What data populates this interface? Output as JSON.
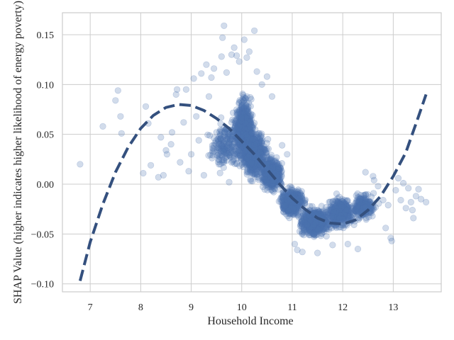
{
  "chart_data": {
    "type": "scatter",
    "xlabel": "Household Income",
    "ylabel": "SHAP Value (higher indicates higher likelihood of energy poverty)",
    "xlim": [
      6.45,
      13.95
    ],
    "ylim": [
      -0.108,
      0.172
    ],
    "x_ticks": [
      7,
      8,
      9,
      10,
      11,
      12,
      13
    ],
    "x_tick_labels": [
      "7",
      "8",
      "9",
      "10",
      "11",
      "12",
      "13"
    ],
    "y_ticks": [
      -0.1,
      -0.05,
      0.0,
      0.05,
      0.1,
      0.15
    ],
    "y_tick_labels": [
      "−0.10",
      "−0.05",
      "0.00",
      "0.05",
      "0.10",
      "0.15"
    ],
    "grid": true,
    "point_color": "#4c72b0",
    "point_alpha": 0.25,
    "trend_color": "#34507e",
    "trend_style": "dashed",
    "series": [
      {
        "kind": "scatter",
        "sparse_points": [
          [
            6.8,
            0.02
          ],
          [
            7.25,
            0.058
          ],
          [
            7.5,
            0.084
          ],
          [
            7.55,
            0.094
          ],
          [
            7.6,
            0.068
          ],
          [
            7.62,
            0.051
          ],
          [
            8.05,
            0.011
          ],
          [
            8.1,
            0.078
          ],
          [
            8.15,
            0.061
          ],
          [
            8.2,
            0.019
          ],
          [
            8.35,
            0.007
          ],
          [
            8.4,
            0.047
          ],
          [
            8.45,
            0.009
          ],
          [
            8.5,
            0.034
          ],
          [
            8.52,
            0.03
          ],
          [
            8.6,
            0.04
          ],
          [
            8.62,
            0.052
          ],
          [
            8.7,
            0.09
          ],
          [
            8.72,
            0.095
          ],
          [
            8.78,
            0.022
          ],
          [
            8.85,
            0.062
          ],
          [
            8.9,
            0.095
          ],
          [
            8.95,
            0.013
          ],
          [
            9.0,
            0.03
          ],
          [
            9.05,
            0.106
          ],
          [
            9.1,
            0.068
          ],
          [
            9.15,
            0.044
          ],
          [
            9.2,
            0.111
          ],
          [
            9.25,
            0.009
          ],
          [
            9.3,
            0.12
          ],
          [
            9.35,
            0.088
          ],
          [
            9.4,
            0.107
          ],
          [
            9.45,
            0.116
          ],
          [
            9.5,
            0.052
          ],
          [
            9.55,
            0.02
          ],
          [
            9.6,
            0.128
          ],
          [
            9.62,
            0.147
          ],
          [
            9.65,
            0.159
          ],
          [
            9.7,
            0.112
          ],
          [
            9.75,
            0.002
          ],
          [
            9.8,
            0.13
          ],
          [
            9.85,
            0.137
          ],
          [
            9.9,
            0.129
          ],
          [
            9.95,
            0.123
          ],
          [
            10.05,
            0.145
          ],
          [
            10.1,
            0.127
          ],
          [
            10.15,
            0.133
          ],
          [
            10.25,
            0.154
          ],
          [
            10.3,
            0.113
          ],
          [
            10.4,
            0.1
          ],
          [
            10.5,
            0.108
          ],
          [
            10.6,
            0.088
          ],
          [
            10.8,
            0.039
          ],
          [
            10.9,
            0.03
          ],
          [
            11.05,
            -0.06
          ],
          [
            11.1,
            -0.066
          ],
          [
            11.2,
            -0.068
          ],
          [
            11.5,
            -0.069
          ],
          [
            11.8,
            -0.061
          ],
          [
            12.1,
            -0.06
          ],
          [
            12.3,
            -0.065
          ],
          [
            12.45,
            0.012
          ],
          [
            12.6,
            0.008
          ],
          [
            12.62,
            0.004
          ],
          [
            12.7,
            -0.002
          ],
          [
            12.8,
            -0.016
          ],
          [
            12.85,
            -0.044
          ],
          [
            12.9,
            -0.021
          ],
          [
            12.95,
            -0.054
          ],
          [
            12.97,
            -0.057
          ],
          [
            13.05,
            -0.006
          ],
          [
            13.1,
            0.006
          ],
          [
            13.15,
            -0.016
          ],
          [
            13.2,
            0.001
          ],
          [
            13.25,
            -0.024
          ],
          [
            13.3,
            -0.004
          ],
          [
            13.35,
            -0.018
          ],
          [
            13.38,
            -0.026
          ],
          [
            13.4,
            -0.034
          ],
          [
            13.45,
            -0.012
          ],
          [
            13.5,
            -0.005
          ],
          [
            13.55,
            -0.015
          ],
          [
            13.65,
            -0.018
          ]
        ],
        "dense_clusters": [
          {
            "x_center": 10.05,
            "x_spread": 0.22,
            "y_center": 0.055,
            "y_spread": 0.032,
            "count": 700
          },
          {
            "x_center": 10.25,
            "x_spread": 0.28,
            "y_center": 0.03,
            "y_spread": 0.025,
            "count": 700
          },
          {
            "x_center": 10.6,
            "x_spread": 0.22,
            "y_center": 0.01,
            "y_spread": 0.018,
            "count": 500
          },
          {
            "x_center": 11.0,
            "x_spread": 0.25,
            "y_center": -0.018,
            "y_spread": 0.015,
            "count": 500
          },
          {
            "x_center": 11.45,
            "x_spread": 0.3,
            "y_center": -0.038,
            "y_spread": 0.015,
            "count": 650
          },
          {
            "x_center": 11.95,
            "x_spread": 0.3,
            "y_center": -0.028,
            "y_spread": 0.015,
            "count": 500
          },
          {
            "x_center": 12.4,
            "x_spread": 0.25,
            "y_center": -0.022,
            "y_spread": 0.013,
            "count": 250
          },
          {
            "x_center": 9.7,
            "x_spread": 0.35,
            "y_center": 0.04,
            "y_spread": 0.03,
            "count": 200
          }
        ]
      },
      {
        "kind": "trend",
        "x": [
          6.8,
          7.0,
          7.25,
          7.5,
          7.75,
          8.0,
          8.25,
          8.5,
          8.75,
          9.0,
          9.25,
          9.5,
          9.75,
          10.0,
          10.25,
          10.5,
          10.75,
          11.0,
          11.25,
          11.5,
          11.75,
          12.0,
          12.25,
          12.5,
          12.75,
          13.0,
          13.25,
          13.5,
          13.65
        ],
        "y": [
          -0.097,
          -0.058,
          -0.02,
          0.012,
          0.037,
          0.056,
          0.069,
          0.077,
          0.08,
          0.079,
          0.074,
          0.066,
          0.056,
          0.043,
          0.03,
          0.015,
          0.0,
          -0.014,
          -0.025,
          -0.034,
          -0.039,
          -0.04,
          -0.036,
          -0.026,
          -0.012,
          0.008,
          0.032,
          0.068,
          0.09
        ]
      }
    ]
  }
}
